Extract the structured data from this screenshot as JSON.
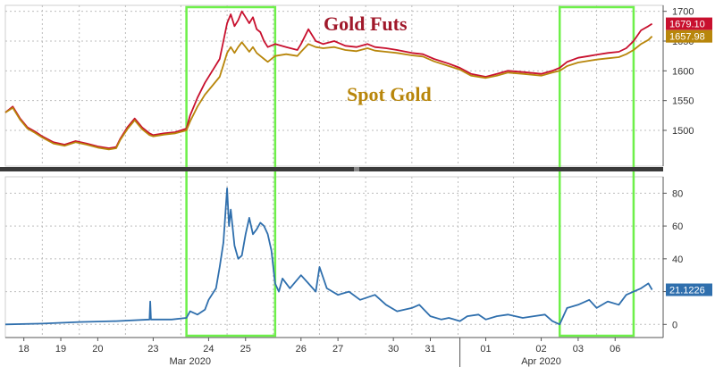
{
  "chart_data": [
    {
      "type": "line",
      "ylim": [
        1440,
        1710
      ],
      "yticks": [
        1500,
        1550,
        1600,
        1650,
        1700
      ],
      "grid": true,
      "axis_side": "right",
      "annotations": [
        {
          "text": "Gold Futs",
          "color": "#a0182a"
        },
        {
          "text": "Spot Gold",
          "color": "#b8860b"
        }
      ],
      "highlight_days": [
        [
          4.9,
          7.3
        ],
        [
          15.0,
          17.0
        ]
      ],
      "highlight_color": "#6ef04a",
      "series": [
        {
          "key": "futs",
          "color": "#c8102e",
          "last_label": "1679.10",
          "points": [
            [
              0,
              1530
            ],
            [
              0.2,
              1540
            ],
            [
              0.4,
              1520
            ],
            [
              0.6,
              1505
            ],
            [
              0.8,
              1498
            ],
            [
              1.0,
              1490
            ],
            [
              1.3,
              1480
            ],
            [
              1.6,
              1476
            ],
            [
              1.9,
              1482
            ],
            [
              2.2,
              1478
            ],
            [
              2.5,
              1473
            ],
            [
              2.8,
              1470
            ],
            [
              3.0,
              1472
            ],
            [
              3.1,
              1485
            ],
            [
              3.3,
              1505
            ],
            [
              3.5,
              1520
            ],
            [
              3.7,
              1505
            ],
            [
              3.9,
              1495
            ],
            [
              4.0,
              1492
            ],
            [
              4.3,
              1495
            ],
            [
              4.6,
              1497
            ],
            [
              4.9,
              1503
            ],
            [
              5.0,
              1525
            ],
            [
              5.2,
              1555
            ],
            [
              5.4,
              1580
            ],
            [
              5.6,
              1600
            ],
            [
              5.8,
              1620
            ],
            [
              5.9,
              1650
            ],
            [
              6.0,
              1680
            ],
            [
              6.1,
              1695
            ],
            [
              6.2,
              1675
            ],
            [
              6.3,
              1685
            ],
            [
              6.4,
              1700
            ],
            [
              6.5,
              1690
            ],
            [
              6.6,
              1680
            ],
            [
              6.7,
              1690
            ],
            [
              6.8,
              1670
            ],
            [
              6.9,
              1665
            ],
            [
              7.0,
              1650
            ],
            [
              7.1,
              1640
            ],
            [
              7.3,
              1645
            ],
            [
              7.6,
              1640
            ],
            [
              7.9,
              1635
            ],
            [
              8.0,
              1645
            ],
            [
              8.2,
              1670
            ],
            [
              8.4,
              1650
            ],
            [
              8.6,
              1645
            ],
            [
              8.9,
              1650
            ],
            [
              9.2,
              1642
            ],
            [
              9.5,
              1640
            ],
            [
              9.8,
              1645
            ],
            [
              10.0,
              1640
            ],
            [
              10.3,
              1638
            ],
            [
              10.6,
              1635
            ],
            [
              11.0,
              1630
            ],
            [
              11.3,
              1628
            ],
            [
              11.6,
              1620
            ],
            [
              12.0,
              1612
            ],
            [
              12.3,
              1605
            ],
            [
              12.6,
              1595
            ],
            [
              13.0,
              1590
            ],
            [
              13.3,
              1595
            ],
            [
              13.6,
              1600
            ],
            [
              14.0,
              1598
            ],
            [
              14.5,
              1595
            ],
            [
              14.8,
              1600
            ],
            [
              15.0,
              1605
            ],
            [
              15.2,
              1615
            ],
            [
              15.5,
              1622
            ],
            [
              15.8,
              1625
            ],
            [
              16.0,
              1627
            ],
            [
              16.3,
              1630
            ],
            [
              16.6,
              1632
            ],
            [
              16.8,
              1638
            ],
            [
              17.0,
              1650
            ],
            [
              17.2,
              1668
            ],
            [
              17.4,
              1675
            ],
            [
              17.5,
              1679.1
            ]
          ]
        },
        {
          "key": "spot",
          "color": "#b8860b",
          "last_label": "1657.98",
          "points": [
            [
              0,
              1530
            ],
            [
              0.2,
              1538
            ],
            [
              0.4,
              1518
            ],
            [
              0.6,
              1503
            ],
            [
              0.8,
              1496
            ],
            [
              1.0,
              1488
            ],
            [
              1.3,
              1478
            ],
            [
              1.6,
              1474
            ],
            [
              1.9,
              1480
            ],
            [
              2.2,
              1476
            ],
            [
              2.5,
              1471
            ],
            [
              2.8,
              1468
            ],
            [
              3.0,
              1470
            ],
            [
              3.1,
              1483
            ],
            [
              3.3,
              1502
            ],
            [
              3.5,
              1517
            ],
            [
              3.7,
              1502
            ],
            [
              3.9,
              1492
            ],
            [
              4.0,
              1490
            ],
            [
              4.3,
              1493
            ],
            [
              4.6,
              1495
            ],
            [
              4.9,
              1500
            ],
            [
              5.0,
              1515
            ],
            [
              5.2,
              1540
            ],
            [
              5.4,
              1560
            ],
            [
              5.6,
              1575
            ],
            [
              5.8,
              1590
            ],
            [
              5.9,
              1610
            ],
            [
              6.0,
              1630
            ],
            [
              6.1,
              1640
            ],
            [
              6.2,
              1630
            ],
            [
              6.3,
              1640
            ],
            [
              6.4,
              1648
            ],
            [
              6.5,
              1640
            ],
            [
              6.6,
              1632
            ],
            [
              6.7,
              1640
            ],
            [
              6.8,
              1630
            ],
            [
              6.9,
              1625
            ],
            [
              7.0,
              1620
            ],
            [
              7.1,
              1615
            ],
            [
              7.3,
              1625
            ],
            [
              7.6,
              1628
            ],
            [
              7.9,
              1625
            ],
            [
              8.0,
              1632
            ],
            [
              8.2,
              1645
            ],
            [
              8.4,
              1640
            ],
            [
              8.6,
              1638
            ],
            [
              8.9,
              1640
            ],
            [
              9.2,
              1635
            ],
            [
              9.5,
              1633
            ],
            [
              9.8,
              1638
            ],
            [
              10.0,
              1634
            ],
            [
              10.3,
              1632
            ],
            [
              10.6,
              1630
            ],
            [
              11.0,
              1626
            ],
            [
              11.3,
              1624
            ],
            [
              11.6,
              1616
            ],
            [
              12.0,
              1608
            ],
            [
              12.3,
              1602
            ],
            [
              12.6,
              1592
            ],
            [
              13.0,
              1588
            ],
            [
              13.3,
              1592
            ],
            [
              13.6,
              1597
            ],
            [
              14.0,
              1595
            ],
            [
              14.5,
              1592
            ],
            [
              14.8,
              1597
            ],
            [
              15.0,
              1600
            ],
            [
              15.2,
              1608
            ],
            [
              15.5,
              1614
            ],
            [
              15.8,
              1617
            ],
            [
              16.0,
              1619
            ],
            [
              16.3,
              1621
            ],
            [
              16.6,
              1623
            ],
            [
              16.8,
              1628
            ],
            [
              17.0,
              1635
            ],
            [
              17.2,
              1645
            ],
            [
              17.4,
              1652
            ],
            [
              17.5,
              1657.98
            ]
          ]
        }
      ]
    },
    {
      "type": "line",
      "ylim": [
        -8,
        90
      ],
      "yticks": [
        0,
        20,
        40,
        60,
        80
      ],
      "grid": true,
      "axis_side": "right",
      "series": [
        {
          "key": "spread",
          "color": "#2f6fad",
          "last_label": "21.1226",
          "points": [
            [
              0,
              0
            ],
            [
              1,
              0.5
            ],
            [
              2,
              1.5
            ],
            [
              3,
              2
            ],
            [
              3.9,
              3
            ],
            [
              3.92,
              14
            ],
            [
              3.94,
              3
            ],
            [
              4.5,
              3
            ],
            [
              4.9,
              4
            ],
            [
              5.0,
              8
            ],
            [
              5.2,
              6
            ],
            [
              5.4,
              9
            ],
            [
              5.5,
              15
            ],
            [
              5.7,
              22
            ],
            [
              5.8,
              35
            ],
            [
              5.9,
              50
            ],
            [
              6.0,
              83
            ],
            [
              6.05,
              60
            ],
            [
              6.1,
              70
            ],
            [
              6.2,
              48
            ],
            [
              6.3,
              40
            ],
            [
              6.4,
              42
            ],
            [
              6.5,
              55
            ],
            [
              6.6,
              65
            ],
            [
              6.7,
              55
            ],
            [
              6.8,
              58
            ],
            [
              6.9,
              62
            ],
            [
              7.0,
              60
            ],
            [
              7.1,
              55
            ],
            [
              7.2,
              45
            ],
            [
              7.3,
              25
            ],
            [
              7.4,
              20
            ],
            [
              7.5,
              28
            ],
            [
              7.7,
              22
            ],
            [
              8.0,
              30
            ],
            [
              8.2,
              25
            ],
            [
              8.4,
              20
            ],
            [
              8.5,
              35
            ],
            [
              8.7,
              22
            ],
            [
              9.0,
              18
            ],
            [
              9.3,
              20
            ],
            [
              9.6,
              15
            ],
            [
              10.0,
              18
            ],
            [
              10.3,
              12
            ],
            [
              10.6,
              8
            ],
            [
              11.0,
              10
            ],
            [
              11.2,
              12
            ],
            [
              11.5,
              5
            ],
            [
              11.8,
              3
            ],
            [
              12.0,
              4
            ],
            [
              12.3,
              2
            ],
            [
              12.5,
              5
            ],
            [
              12.8,
              6
            ],
            [
              13.0,
              3
            ],
            [
              13.3,
              5
            ],
            [
              13.6,
              6
            ],
            [
              14.0,
              4
            ],
            [
              14.3,
              5
            ],
            [
              14.6,
              6
            ],
            [
              14.8,
              2
            ],
            [
              15.0,
              0
            ],
            [
              15.2,
              10
            ],
            [
              15.5,
              12
            ],
            [
              15.8,
              15
            ],
            [
              16.0,
              10
            ],
            [
              16.3,
              14
            ],
            [
              16.6,
              12
            ],
            [
              16.8,
              18
            ],
            [
              17.0,
              20
            ],
            [
              17.2,
              22
            ],
            [
              17.4,
              25
            ],
            [
              17.5,
              21.1226
            ]
          ]
        }
      ]
    }
  ],
  "x_axis": {
    "days": [
      "18",
      "19",
      "20",
      "23",
      "24",
      "25",
      "26",
      "27",
      "30",
      "31",
      "01",
      "02",
      "03",
      "06"
    ],
    "day_positions": [
      0.5,
      1.5,
      2.5,
      4.0,
      5.5,
      6.5,
      8.0,
      9.0,
      10.5,
      11.5,
      13.0,
      14.5,
      15.5,
      16.5
    ],
    "months": [
      {
        "label": "Mar 2020",
        "center": 5.0
      },
      {
        "label": "Apr 2020",
        "center": 14.5
      }
    ],
    "month_divider": 12.3,
    "domain": [
      0,
      17.8
    ]
  }
}
